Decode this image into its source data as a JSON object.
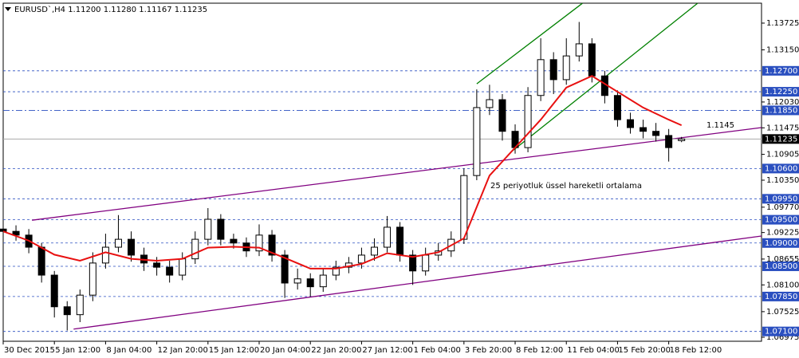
{
  "chart_data": {
    "type": "candlestick",
    "title": "EURUSD`,H4  1.11200 1.11280 1.11167 1.11235",
    "x": [
      0,
      4,
      8,
      12,
      16,
      20,
      24,
      28,
      32,
      36,
      40,
      44,
      48,
      52,
      56,
      60,
      64,
      68,
      72,
      76,
      80,
      84,
      88,
      92,
      96,
      100,
      104,
      108,
      112,
      116,
      120,
      124,
      128,
      132,
      136,
      140,
      144,
      148,
      152,
      156,
      160,
      164,
      168,
      172,
      176,
      180,
      184,
      188,
      192,
      196,
      200,
      204,
      208,
      212
    ],
    "open": [
      1.093,
      1.0925,
      1.0917,
      1.0891,
      1.0831,
      1.0763,
      1.0746,
      1.0788,
      1.0857,
      1.0891,
      1.0908,
      1.0874,
      1.0857,
      1.0848,
      1.0831,
      1.0866,
      1.0908,
      1.0951,
      1.0908,
      1.09,
      1.0883,
      1.0917,
      1.0874,
      1.0814,
      1.0823,
      1.0806,
      1.0831,
      1.0848,
      1.0857,
      1.0874,
      1.0891,
      1.0934,
      1.0874,
      1.084,
      1.0874,
      1.0883,
      1.0908,
      1.1045,
      1.1191,
      1.1208,
      1.114,
      1.1105,
      1.1217,
      1.1294,
      1.1251,
      1.1302,
      1.1328,
      1.1259,
      1.1217,
      1.1165,
      1.1148,
      1.114,
      1.1131,
      1.112
    ],
    "high": [
      1.0945,
      1.0938,
      1.093,
      1.09,
      1.084,
      1.0775,
      1.08,
      1.088,
      1.092,
      1.096,
      1.0925,
      1.089,
      1.087,
      1.0862,
      1.088,
      1.0925,
      1.0975,
      1.0962,
      1.092,
      1.0912,
      1.094,
      1.0928,
      1.0885,
      1.0845,
      1.0835,
      1.0845,
      1.0862,
      1.087,
      1.089,
      1.091,
      1.0958,
      1.0945,
      1.0885,
      1.089,
      1.09,
      1.0925,
      1.106,
      1.123,
      1.124,
      1.122,
      1.1155,
      1.1235,
      1.134,
      1.131,
      1.134,
      1.1375,
      1.134,
      1.127,
      1.1228,
      1.118,
      1.1165,
      1.1158,
      1.1145,
      1.1128
    ],
    "low": [
      1.0912,
      1.0905,
      1.0878,
      1.0815,
      1.074,
      1.0712,
      1.073,
      1.0775,
      1.0845,
      1.088,
      1.086,
      1.084,
      1.083,
      1.0815,
      1.082,
      1.0855,
      1.0895,
      1.0895,
      1.0888,
      1.087,
      1.0872,
      1.086,
      1.0782,
      1.08,
      1.0785,
      1.0795,
      1.082,
      1.0835,
      1.0845,
      1.0862,
      1.088,
      1.086,
      1.081,
      1.083,
      1.0862,
      1.087,
      1.0898,
      1.1035,
      1.1175,
      1.112,
      1.1092,
      1.1095,
      1.1205,
      1.122,
      1.124,
      1.129,
      1.1245,
      1.12,
      1.115,
      1.1135,
      1.1125,
      1.1118,
      1.1075,
      1.11167
    ],
    "close": [
      1.0925,
      1.0917,
      1.0891,
      1.0831,
      1.0763,
      1.0746,
      1.0788,
      1.0857,
      1.0891,
      1.0908,
      1.0874,
      1.0857,
      1.0848,
      1.0831,
      1.0866,
      1.0908,
      1.0951,
      1.0908,
      1.09,
      1.0883,
      1.0917,
      1.0874,
      1.0814,
      1.0823,
      1.0806,
      1.0831,
      1.0848,
      1.0857,
      1.0874,
      1.0891,
      1.0934,
      1.0874,
      1.084,
      1.0874,
      1.0883,
      1.0908,
      1.1045,
      1.1191,
      1.1208,
      1.114,
      1.1105,
      1.1217,
      1.1294,
      1.1251,
      1.1302,
      1.1328,
      1.1259,
      1.1217,
      1.1165,
      1.1148,
      1.114,
      1.1131,
      1.1105,
      1.11235
    ],
    "up_color": "#ffffff",
    "down_color": "#000000",
    "ema": {
      "color": "#e81010",
      "x": [
        0,
        8,
        16,
        24,
        32,
        40,
        48,
        56,
        64,
        72,
        80,
        88,
        96,
        104,
        112,
        120,
        128,
        136,
        144,
        152,
        160,
        168,
        176,
        184,
        192,
        200,
        208,
        212
      ],
      "values": [
        1.0925,
        1.0905,
        1.0875,
        1.0862,
        1.088,
        1.0866,
        1.0862,
        1.0866,
        1.089,
        1.0892,
        1.089,
        1.0868,
        1.0845,
        1.0845,
        1.0855,
        1.0878,
        1.087,
        1.088,
        1.091,
        1.1045,
        1.1105,
        1.1165,
        1.1234,
        1.1259,
        1.1225,
        1.1191,
        1.1165,
        1.1153
      ]
    },
    "trendlines": [
      {
        "color": "#800080",
        "x": [
          9,
          237
        ],
        "y": [
          1.0949,
          1.1148
        ]
      },
      {
        "color": "#800080",
        "x": [
          22,
          237
        ],
        "y": [
          1.0715,
          1.0915
        ]
      },
      {
        "color": "#008000",
        "x": [
          148,
          181
        ],
        "y": [
          1.1242,
          1.1415
        ]
      },
      {
        "color": "#008000",
        "x": [
          159,
          217
        ],
        "y": [
          1.1097,
          1.1415
        ]
      }
    ],
    "levels": [
      {
        "value": 1.127,
        "label": "1.12700",
        "style": "dash"
      },
      {
        "value": 1.1225,
        "label": "1.12250",
        "style": "dash"
      },
      {
        "value": 1.1185,
        "label": "1.11850",
        "style": "dashdot"
      },
      {
        "value": 1.106,
        "label": "1.10600",
        "style": "dash"
      },
      {
        "value": 1.0995,
        "label": "1.09950",
        "style": "dash"
      },
      {
        "value": 1.095,
        "label": "1.09500",
        "style": "dash"
      },
      {
        "value": 1.09,
        "label": "1.09000",
        "style": "dash"
      },
      {
        "value": 1.085,
        "label": "1.08500",
        "style": "dash"
      },
      {
        "value": 1.0785,
        "label": "1.07850",
        "style": "dash"
      },
      {
        "value": 1.071,
        "label": "1.07100",
        "style": "dash"
      }
    ],
    "level_color": "#2a4fc0",
    "current": {
      "value": 1.11235,
      "label": "1.11235"
    },
    "annotations": [
      "1.1145",
      "25 periyotluk üssel hareketli ortalama"
    ],
    "xlim": [
      0,
      237
    ],
    "xticks": [
      {
        "value": 0,
        "label": "30 Dec 2015"
      },
      {
        "value": 16,
        "label": "5 Jan 12:00"
      },
      {
        "value": 32,
        "label": "8 Jan 04:00"
      },
      {
        "value": 48,
        "label": "12 Jan 20:00"
      },
      {
        "value": 64,
        "label": "15 Jan 12:00"
      },
      {
        "value": 80,
        "label": "20 Jan 04:00"
      },
      {
        "value": 96,
        "label": "22 Jan 20:00"
      },
      {
        "value": 112,
        "label": "27 Jan 12:00"
      },
      {
        "value": 128,
        "label": "1 Feb 04:00"
      },
      {
        "value": 144,
        "label": "3 Feb 20:00"
      },
      {
        "value": 160,
        "label": "8 Feb 12:00"
      },
      {
        "value": 176,
        "label": "11 Feb 04:00"
      },
      {
        "value": 192,
        "label": "15 Feb 20:00"
      },
      {
        "value": 208,
        "label": "18 Feb 12:00"
      }
    ],
    "ylim": [
      1.06889,
      1.14153
    ],
    "yticks": [
      1.13725,
      {
        "value": 1.1315,
        "label": "1.13150"
      },
      {
        "value": 1.1203,
        "label": "1.12030"
      },
      1.11475,
      1.10905,
      {
        "value": 1.1035,
        "label": "1.10350"
      },
      {
        "value": 1.0977,
        "label": "1.09770"
      },
      1.09225,
      1.08655,
      {
        "value": 1.081,
        "label": "1.08100"
      },
      1.07525,
      1.06975
    ]
  }
}
